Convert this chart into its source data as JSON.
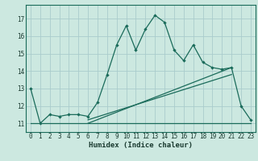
{
  "xlabel": "Humidex (Indice chaleur)",
  "background_color": "#cce8e0",
  "grid_color": "#aacccc",
  "line_color": "#1a6b5a",
  "xlim": [
    -0.5,
    23.5
  ],
  "ylim": [
    10.5,
    17.8
  ],
  "xticks": [
    0,
    1,
    2,
    3,
    4,
    5,
    6,
    7,
    8,
    9,
    10,
    11,
    12,
    13,
    14,
    15,
    16,
    17,
    18,
    19,
    20,
    21,
    22,
    23
  ],
  "yticks": [
    11,
    12,
    13,
    14,
    15,
    16,
    17
  ],
  "line1_x": [
    0,
    1,
    2,
    3,
    4,
    5,
    6,
    7,
    8,
    9,
    10,
    11,
    12,
    13,
    14,
    15,
    16,
    17,
    18,
    19,
    20,
    21,
    22,
    23
  ],
  "line1_y": [
    13.0,
    11.0,
    11.5,
    11.4,
    11.5,
    11.5,
    11.4,
    12.2,
    13.8,
    15.5,
    16.6,
    15.2,
    16.4,
    17.2,
    16.8,
    15.2,
    14.6,
    15.5,
    14.5,
    14.2,
    14.1,
    14.2,
    12.0,
    11.2
  ],
  "line2_x": [
    0,
    6,
    23
  ],
  "line2_y": [
    11.0,
    11.0,
    11.0
  ],
  "line3_x": [
    6,
    21
  ],
  "line3_y": [
    11.0,
    14.2
  ],
  "line4_x": [
    6,
    21
  ],
  "line4_y": [
    11.2,
    13.8
  ]
}
